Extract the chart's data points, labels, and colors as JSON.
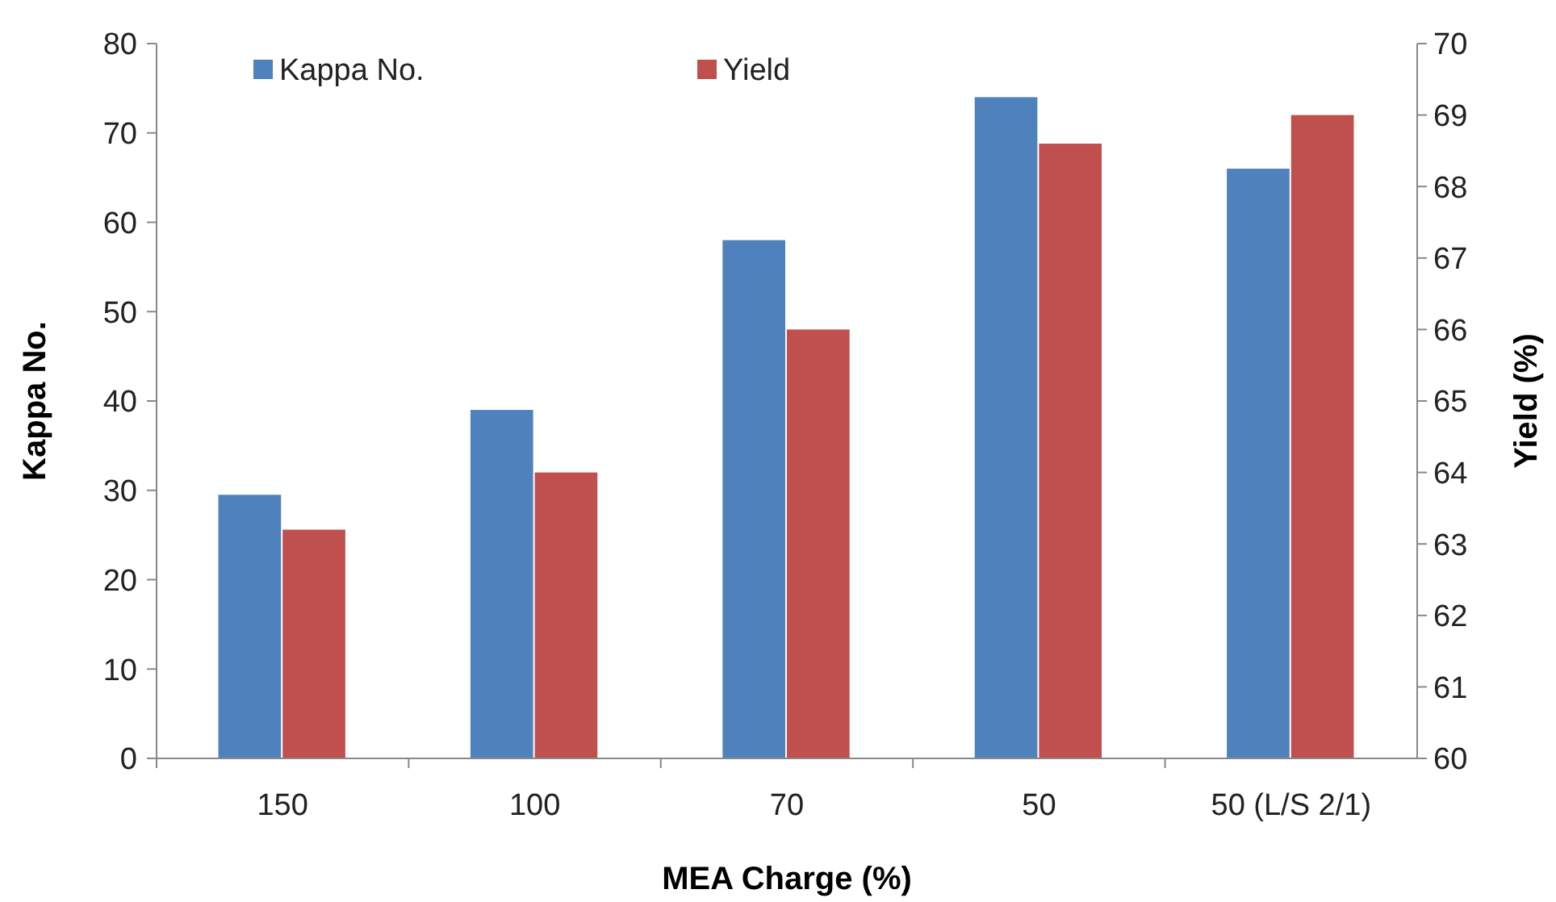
{
  "chart_data": {
    "type": "bar",
    "xlabel": "MEA Charge (%)",
    "ylabel": "Kappa No.",
    "y2label": "Yield (%)",
    "categories": [
      "150",
      "100",
      "70",
      "50",
      "50 (L/S  2/1)"
    ],
    "series": [
      {
        "name": "Kappa No.",
        "color": "#4f81bd",
        "values": [
          29.5,
          39,
          58,
          74,
          66
        ]
      },
      {
        "name": "Yield",
        "color": "#c0504d",
        "values": [
          63.2,
          64,
          66,
          68.6,
          69
        ],
        "axis": "y2"
      }
    ],
    "ylim": [
      0,
      80
    ],
    "yticks": [
      0,
      10,
      20,
      30,
      40,
      50,
      60,
      70,
      80
    ],
    "y2lim": [
      60,
      70
    ],
    "y2ticks": [
      60,
      61,
      62,
      63,
      64,
      65,
      66,
      67,
      68,
      69,
      70
    ],
    "grid": false,
    "legend": "top left"
  }
}
